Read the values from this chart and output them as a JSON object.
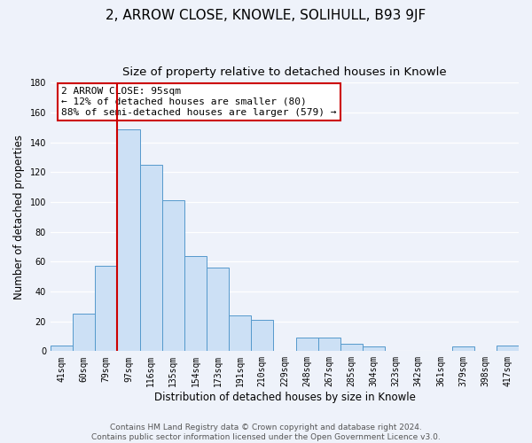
{
  "title": "2, ARROW CLOSE, KNOWLE, SOLIHULL, B93 9JF",
  "subtitle": "Size of property relative to detached houses in Knowle",
  "xlabel": "Distribution of detached houses by size in Knowle",
  "ylabel": "Number of detached properties",
  "footer_line1": "Contains HM Land Registry data © Crown copyright and database right 2024.",
  "footer_line2": "Contains public sector information licensed under the Open Government Licence v3.0.",
  "bar_labels": [
    "41sqm",
    "60sqm",
    "79sqm",
    "97sqm",
    "116sqm",
    "135sqm",
    "154sqm",
    "173sqm",
    "191sqm",
    "210sqm",
    "229sqm",
    "248sqm",
    "267sqm",
    "285sqm",
    "304sqm",
    "323sqm",
    "342sqm",
    "361sqm",
    "379sqm",
    "398sqm",
    "417sqm"
  ],
  "bar_values": [
    4,
    25,
    57,
    149,
    125,
    101,
    64,
    56,
    24,
    21,
    0,
    9,
    9,
    5,
    3,
    0,
    0,
    0,
    3,
    0,
    4
  ],
  "bar_color": "#cce0f5",
  "bar_edge_color": "#5599cc",
  "marker_color": "#cc0000",
  "annotation_line1": "2 ARROW CLOSE: 95sqm",
  "annotation_line2": "← 12% of detached houses are smaller (80)",
  "annotation_line3": "88% of semi-detached houses are larger (579) →",
  "annotation_box_color": "#ffffff",
  "annotation_box_edge": "#cc0000",
  "ylim": [
    0,
    180
  ],
  "yticks": [
    0,
    20,
    40,
    60,
    80,
    100,
    120,
    140,
    160,
    180
  ],
  "background_color": "#eef2fa",
  "grid_color": "#ffffff",
  "title_fontsize": 11,
  "subtitle_fontsize": 9.5,
  "axis_label_fontsize": 8.5,
  "tick_fontsize": 7,
  "annotation_fontsize": 8,
  "footer_fontsize": 6.5
}
